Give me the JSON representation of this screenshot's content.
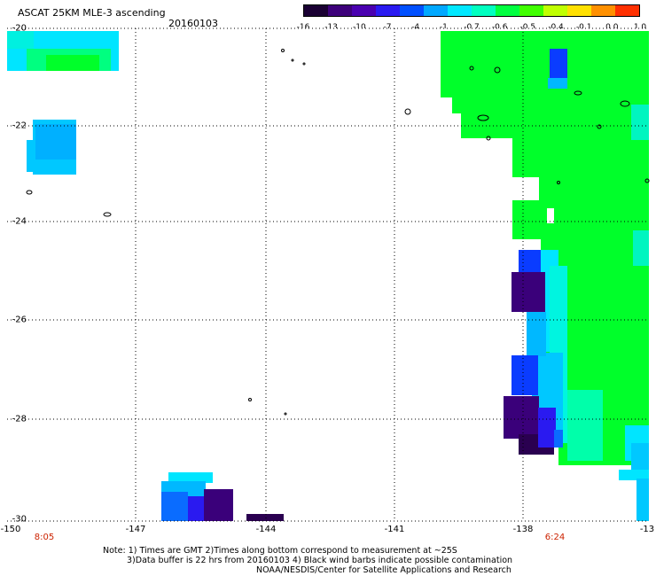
{
  "header": {
    "title": "ASCAT 25KM MLE-3 ascending",
    "date": "20160103"
  },
  "colorbar": {
    "ticks": [
      "-16",
      "-13",
      "-10",
      "-7",
      "-4",
      "-1",
      "-0.7",
      "-0.6",
      "-0.5",
      "-0.4",
      "-0.1",
      "0.0",
      "1.0"
    ],
    "colors": [
      "#1a0033",
      "#3d007a",
      "#4a00b0",
      "#2a1af0",
      "#0050ff",
      "#00a8ff",
      "#00e8ff",
      "#00ffc0",
      "#00ff40",
      "#40ff00",
      "#c0ff00",
      "#ffe000",
      "#ff9000",
      "#ff3000"
    ]
  },
  "map": {
    "lat_labels": [
      "-20",
      "-22",
      "-24",
      "-26",
      "-28",
      "-30"
    ],
    "lon_labels": [
      "-150",
      "-147",
      "-144",
      "-141",
      "-138",
      "-13"
    ],
    "times": [
      "8:05",
      "6:24"
    ],
    "colors": {
      "green": "#00ff2a",
      "cyan": "#00e5ff",
      "light_cyan": "#00f5e0",
      "blue": "#0a3cff",
      "purple": "#3a007a",
      "dark_purple": "#2a0050",
      "sky": "#00b8ff"
    }
  },
  "notes": {
    "line1": "Note: 1) Times are GMT 2)Times along bottom correspond to measurement at ~25S",
    "line2": "3)Data buffer is 22 hrs from 20160103 4) Black wind barbs indicate possible contamination",
    "line3": "NOAA/NESDIS/Center for Satellite Applications and Research"
  }
}
